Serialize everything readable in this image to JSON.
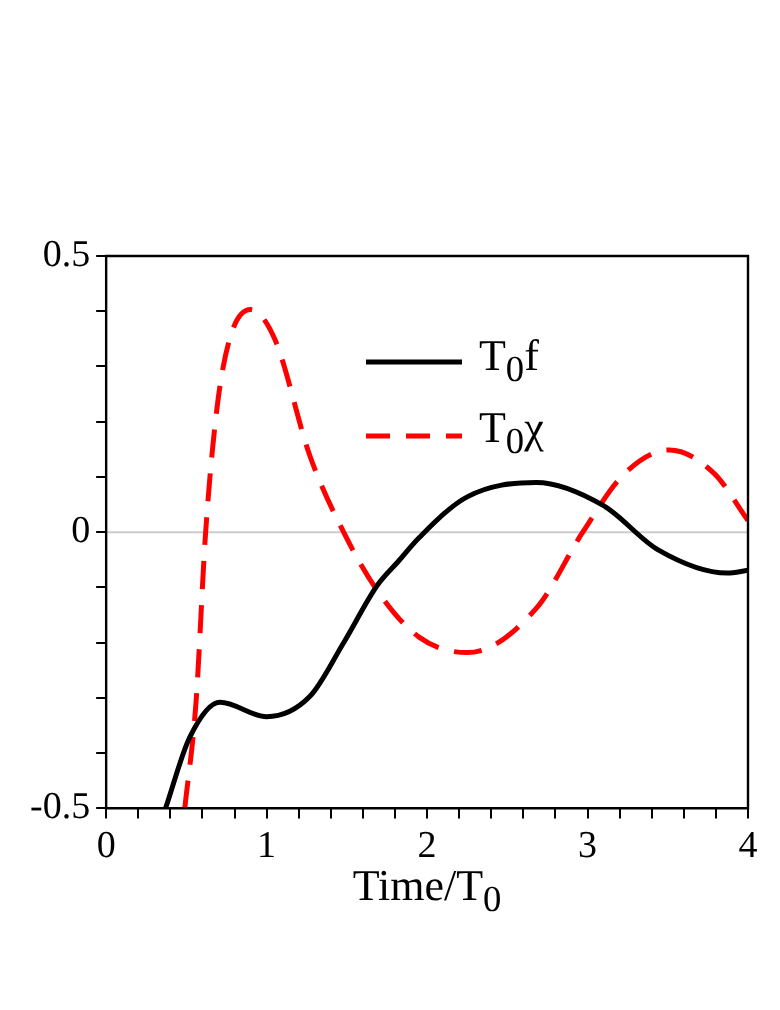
{
  "chart_data": {
    "type": "line",
    "xlabel": "Time/T$_{0}$",
    "xlim": [
      0,
      4
    ],
    "ylim": [
      -0.5,
      0.5
    ],
    "xticks": [
      0,
      {
        "value": 0.2,
        "label": null
      },
      {
        "value": 0.4,
        "label": null
      },
      {
        "value": 0.6,
        "label": null
      },
      {
        "value": 0.8,
        "label": null
      },
      1,
      {
        "value": 1.2,
        "label": null
      },
      {
        "value": 1.4,
        "label": null
      },
      {
        "value": 1.6,
        "label": null
      },
      {
        "value": 1.8,
        "label": null
      },
      2,
      {
        "value": 2.2,
        "label": null
      },
      {
        "value": 2.4,
        "label": null
      },
      {
        "value": 2.6,
        "label": null
      },
      {
        "value": 2.8,
        "label": null
      },
      3,
      {
        "value": 3.2,
        "label": null
      },
      {
        "value": 3.4,
        "label": null
      },
      {
        "value": 3.6,
        "label": null
      },
      {
        "value": 3.8,
        "label": null
      },
      4
    ],
    "yticks": [
      -0.5,
      {
        "value": -0.4,
        "label": null
      },
      {
        "value": -0.3,
        "label": null
      },
      {
        "value": -0.2,
        "label": null
      },
      {
        "value": -0.1,
        "label": null
      },
      0,
      {
        "value": 0.1,
        "label": null
      },
      {
        "value": 0.2,
        "label": null
      },
      {
        "value": 0.3,
        "label": null
      },
      {
        "value": 0.4,
        "label": null
      },
      0.5
    ],
    "grid": false,
    "legend": "top right",
    "ref_lines": [
      {
        "axis": "y",
        "value": 0,
        "color": "#cccccc"
      }
    ],
    "series": [
      {
        "name": "T$_{0}$f",
        "color": "#000000",
        "line_style": "solid",
        "x": [
          0.37,
          0.52,
          0.71,
          1.0,
          1.27,
          1.48,
          1.69,
          1.82,
          1.95,
          2.25,
          2.68,
          3.1,
          3.44,
          3.87,
          4.0
        ],
        "values": [
          -0.5,
          -0.372,
          -0.308,
          -0.334,
          -0.297,
          -0.2,
          -0.096,
          -0.053,
          -0.01,
          0.064,
          0.09,
          0.048,
          -0.032,
          -0.074,
          -0.069
        ]
      },
      {
        "name": "T$_{0}$χ",
        "color": "#ff0000",
        "line_style": "dashed",
        "x": [
          0.49,
          0.56,
          0.62,
          0.69,
          0.77,
          0.9,
          1.05,
          1.27,
          1.48,
          1.69,
          1.95,
          2.25,
          2.68,
          2.97,
          3.23,
          3.51,
          3.79,
          4.0
        ],
        "values": [
          -0.5,
          -0.308,
          0,
          0.223,
          0.35,
          0.403,
          0.35,
          0.138,
          0,
          -0.106,
          -0.19,
          -0.218,
          -0.138,
          0,
          0.106,
          0.149,
          0.106,
          0.021
        ]
      }
    ]
  }
}
